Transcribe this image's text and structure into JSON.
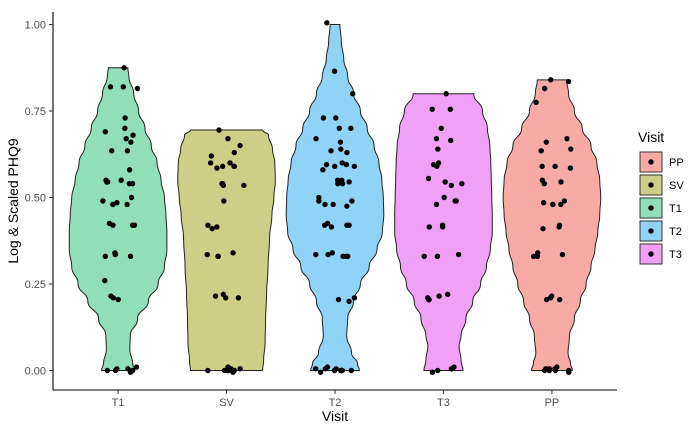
{
  "chart_data": {
    "type": "violin",
    "xlabel": "Visit",
    "ylabel": "Log & Scaled PHQ9",
    "ylim": [
      0,
      1
    ],
    "y_ticks": [
      0,
      0.25,
      0.5,
      0.75,
      1
    ],
    "y_tick_labels": [
      "0.00",
      "0.25",
      "0.50",
      "0.75",
      "1.00"
    ],
    "categories": [
      "T1",
      "SV",
      "T2",
      "T3",
      "PP"
    ],
    "grid": false,
    "legend": {
      "title": "Visit",
      "position": "right",
      "entries": [
        "PP",
        "SV",
        "T1",
        "T2",
        "T3"
      ]
    },
    "colors": {
      "PP": "#f8aaa5",
      "SV": "#cccf85",
      "T1": "#90dfb8",
      "T2": "#8fd3f7",
      "T3": "#f0a1f5"
    },
    "series": [
      {
        "name": "T1",
        "max": 0.875,
        "width_profile": [
          [
            0,
            0.34
          ],
          [
            0.02,
            0.3
          ],
          [
            0.06,
            0.24
          ],
          [
            0.1,
            0.25
          ],
          [
            0.15,
            0.4
          ],
          [
            0.2,
            0.62
          ],
          [
            0.25,
            0.82
          ],
          [
            0.3,
            0.95
          ],
          [
            0.35,
            1.0
          ],
          [
            0.4,
            1.0
          ],
          [
            0.45,
            0.98
          ],
          [
            0.5,
            0.95
          ],
          [
            0.55,
            0.88
          ],
          [
            0.6,
            0.8
          ],
          [
            0.65,
            0.68
          ],
          [
            0.7,
            0.55
          ],
          [
            0.75,
            0.42
          ],
          [
            0.8,
            0.32
          ],
          [
            0.85,
            0.22
          ],
          [
            0.875,
            0.2
          ]
        ],
        "points": [
          0.875,
          0.82,
          0.82,
          0.815,
          0.73,
          0.7,
          0.69,
          0.68,
          0.67,
          0.66,
          0.635,
          0.635,
          0.58,
          0.55,
          0.55,
          0.545,
          0.545,
          0.54,
          0.54,
          0.5,
          0.49,
          0.485,
          0.48,
          0.48,
          0.425,
          0.42,
          0.42,
          0.42,
          0.34,
          0.335,
          0.33,
          0.33,
          0.26,
          0.215,
          0.21,
          0.205,
          0.01,
          0.005,
          0.005,
          0.0,
          0.0,
          0.0,
          -0.005
        ]
      },
      {
        "name": "SV",
        "max": 0.695,
        "width_profile": [
          [
            0,
            0.74
          ],
          [
            0.03,
            0.76
          ],
          [
            0.08,
            0.79
          ],
          [
            0.15,
            0.8
          ],
          [
            0.22,
            0.82
          ],
          [
            0.3,
            0.85
          ],
          [
            0.38,
            0.88
          ],
          [
            0.45,
            0.93
          ],
          [
            0.5,
            0.97
          ],
          [
            0.55,
            1.0
          ],
          [
            0.6,
            0.99
          ],
          [
            0.64,
            0.94
          ],
          [
            0.68,
            0.86
          ],
          [
            0.695,
            0.74
          ]
        ],
        "points": [
          0.695,
          0.67,
          0.65,
          0.63,
          0.62,
          0.6,
          0.6,
          0.59,
          0.59,
          0.59,
          0.585,
          0.54,
          0.54,
          0.535,
          0.535,
          0.49,
          0.42,
          0.415,
          0.41,
          0.34,
          0.335,
          0.33,
          0.33,
          0.22,
          0.215,
          0.21,
          0.21,
          0.01,
          0.005,
          0.005,
          0.0,
          0.0,
          0.0,
          0.0,
          0.0,
          -0.005
        ]
      },
      {
        "name": "T2",
        "max": 1.0,
        "width_profile": [
          [
            0,
            0.5
          ],
          [
            0.02,
            0.46
          ],
          [
            0.05,
            0.34
          ],
          [
            0.1,
            0.24
          ],
          [
            0.15,
            0.26
          ],
          [
            0.2,
            0.38
          ],
          [
            0.25,
            0.52
          ],
          [
            0.3,
            0.7
          ],
          [
            0.35,
            0.86
          ],
          [
            0.4,
            0.97
          ],
          [
            0.45,
            1.0
          ],
          [
            0.5,
            0.99
          ],
          [
            0.55,
            0.96
          ],
          [
            0.6,
            0.9
          ],
          [
            0.65,
            0.8
          ],
          [
            0.7,
            0.66
          ],
          [
            0.75,
            0.52
          ],
          [
            0.8,
            0.38
          ],
          [
            0.85,
            0.26
          ],
          [
            0.9,
            0.18
          ],
          [
            0.95,
            0.13
          ],
          [
            1.0,
            0.1
          ]
        ],
        "points": [
          1.005,
          0.865,
          0.8,
          0.73,
          0.73,
          0.7,
          0.7,
          0.67,
          0.66,
          0.64,
          0.635,
          0.63,
          0.6,
          0.595,
          0.595,
          0.59,
          0.59,
          0.58,
          0.55,
          0.55,
          0.545,
          0.54,
          0.54,
          0.5,
          0.49,
          0.49,
          0.48,
          0.48,
          0.475,
          0.425,
          0.42,
          0.42,
          0.42,
          0.415,
          0.34,
          0.335,
          0.335,
          0.33,
          0.33,
          0.33,
          0.21,
          0.205,
          0.2,
          0.01,
          0.005,
          0.005,
          0.005,
          0.0,
          0.0,
          0.0,
          0.0,
          0.0,
          0.0,
          0.0,
          -0.005
        ]
      },
      {
        "name": "T3",
        "max": 0.8,
        "width_profile": [
          [
            0,
            0.4
          ],
          [
            0.03,
            0.36
          ],
          [
            0.07,
            0.32
          ],
          [
            0.1,
            0.36
          ],
          [
            0.15,
            0.46
          ],
          [
            0.2,
            0.6
          ],
          [
            0.25,
            0.76
          ],
          [
            0.3,
            0.88
          ],
          [
            0.35,
            0.96
          ],
          [
            0.4,
            1.0
          ],
          [
            0.45,
            1.0
          ],
          [
            0.5,
            0.99
          ],
          [
            0.55,
            0.98
          ],
          [
            0.6,
            0.97
          ],
          [
            0.65,
            0.95
          ],
          [
            0.7,
            0.9
          ],
          [
            0.75,
            0.8
          ],
          [
            0.8,
            0.62
          ]
        ],
        "points": [
          0.8,
          0.755,
          0.755,
          0.7,
          0.67,
          0.665,
          0.64,
          0.6,
          0.595,
          0.59,
          0.555,
          0.545,
          0.54,
          0.535,
          0.5,
          0.49,
          0.49,
          0.48,
          0.42,
          0.415,
          0.415,
          0.335,
          0.33,
          0.33,
          0.22,
          0.215,
          0.21,
          0.205,
          0.205,
          0.205,
          0.01,
          0.005,
          0.005,
          0.0,
          -0.005
        ]
      },
      {
        "name": "PP",
        "max": 0.84,
        "width_profile": [
          [
            0,
            0.42
          ],
          [
            0.02,
            0.38
          ],
          [
            0.05,
            0.33
          ],
          [
            0.1,
            0.36
          ],
          [
            0.15,
            0.46
          ],
          [
            0.2,
            0.58
          ],
          [
            0.25,
            0.7
          ],
          [
            0.3,
            0.8
          ],
          [
            0.35,
            0.88
          ],
          [
            0.4,
            0.94
          ],
          [
            0.45,
            0.98
          ],
          [
            0.5,
            1.0
          ],
          [
            0.55,
            0.98
          ],
          [
            0.6,
            0.92
          ],
          [
            0.65,
            0.8
          ],
          [
            0.7,
            0.62
          ],
          [
            0.75,
            0.46
          ],
          [
            0.8,
            0.34
          ],
          [
            0.84,
            0.3
          ]
        ],
        "points": [
          0.84,
          0.835,
          0.815,
          0.775,
          0.67,
          0.66,
          0.64,
          0.635,
          0.59,
          0.59,
          0.585,
          0.55,
          0.545,
          0.54,
          0.49,
          0.485,
          0.48,
          0.48,
          0.48,
          0.42,
          0.415,
          0.41,
          0.34,
          0.335,
          0.33,
          0.33,
          0.215,
          0.21,
          0.205,
          0.205,
          0.01,
          0.005,
          0.005,
          0.005,
          0.0,
          0.0,
          0.0,
          0.0,
          -0.005
        ]
      }
    ]
  }
}
